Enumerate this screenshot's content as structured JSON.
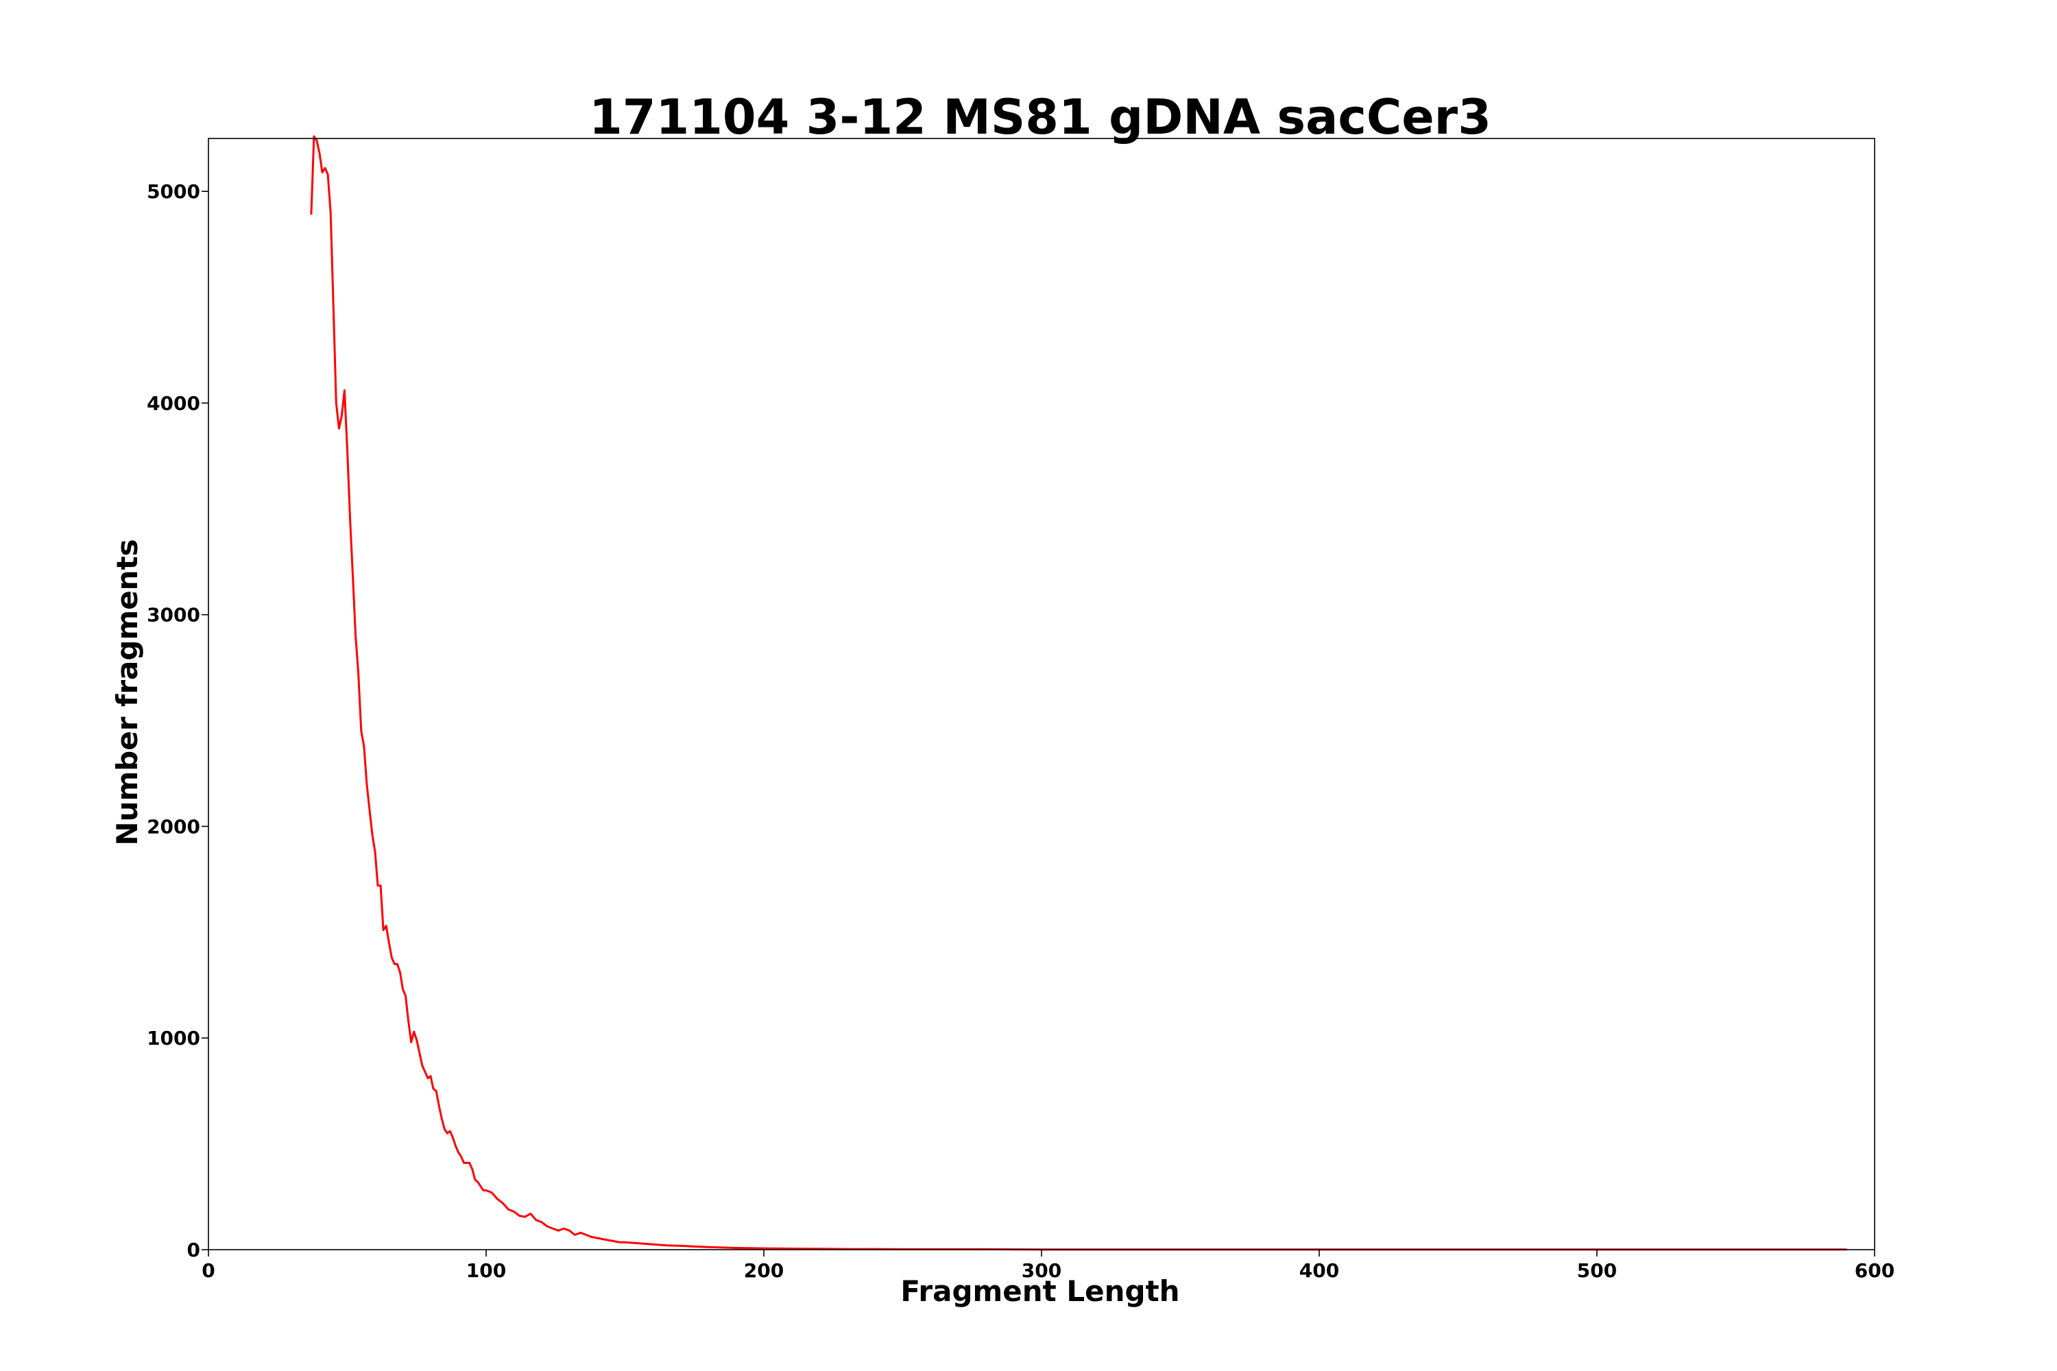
{
  "chart_data": {
    "type": "line",
    "title": "171104 3-12 MS81 gDNA sacCer3",
    "xlabel": "Fragment Length",
    "ylabel": "Number fragments",
    "xlim": [
      0,
      600
    ],
    "ylim": [
      0,
      5250
    ],
    "xticks": [
      0,
      100,
      200,
      300,
      400,
      500,
      600
    ],
    "yticks": [
      0,
      1000,
      2000,
      3000,
      4000,
      5000
    ],
    "grid": false,
    "series": [
      {
        "color": "#ff0000",
        "x": [
          37,
          38,
          39,
          40,
          41,
          42,
          43,
          44,
          45,
          46,
          47,
          48,
          49,
          50,
          51,
          52,
          53,
          54,
          55,
          56,
          57,
          58,
          59,
          60,
          61,
          62,
          63,
          64,
          65,
          66,
          67,
          68,
          69,
          70,
          71,
          72,
          73,
          74,
          75,
          76,
          77,
          78,
          79,
          80,
          81,
          82,
          83,
          84,
          85,
          86,
          87,
          88,
          89,
          90,
          91,
          92,
          93,
          94,
          95,
          96,
          97,
          98,
          99,
          100,
          102,
          104,
          106,
          108,
          110,
          112,
          114,
          116,
          118,
          120,
          122,
          124,
          126,
          128,
          130,
          132,
          134,
          136,
          138,
          140,
          142,
          144,
          146,
          148,
          150,
          155,
          160,
          165,
          170,
          175,
          180,
          185,
          190,
          195,
          200,
          210,
          220,
          230,
          240,
          250,
          260,
          280,
          300,
          350,
          400,
          450,
          500,
          550,
          590
        ],
        "y": [
          4890,
          5260,
          5240,
          5180,
          5090,
          5110,
          5080,
          4900,
          4450,
          4000,
          3880,
          3940,
          4060,
          3780,
          3450,
          3180,
          2900,
          2720,
          2450,
          2380,
          2200,
          2080,
          1960,
          1880,
          1720,
          1720,
          1510,
          1530,
          1450,
          1380,
          1350,
          1350,
          1310,
          1230,
          1200,
          1080,
          980,
          1030,
          990,
          930,
          870,
          840,
          810,
          820,
          760,
          750,
          680,
          620,
          570,
          550,
          560,
          530,
          490,
          460,
          440,
          410,
          410,
          410,
          380,
          330,
          320,
          300,
          280,
          280,
          270,
          240,
          220,
          190,
          180,
          160,
          155,
          170,
          140,
          130,
          110,
          100,
          90,
          100,
          90,
          70,
          80,
          70,
          60,
          55,
          50,
          45,
          40,
          35,
          35,
          30,
          25,
          20,
          18,
          15,
          12,
          10,
          8,
          7,
          6,
          5,
          4,
          3,
          3,
          2,
          2,
          2,
          1,
          1,
          1,
          1,
          1,
          1,
          1
        ]
      }
    ]
  }
}
